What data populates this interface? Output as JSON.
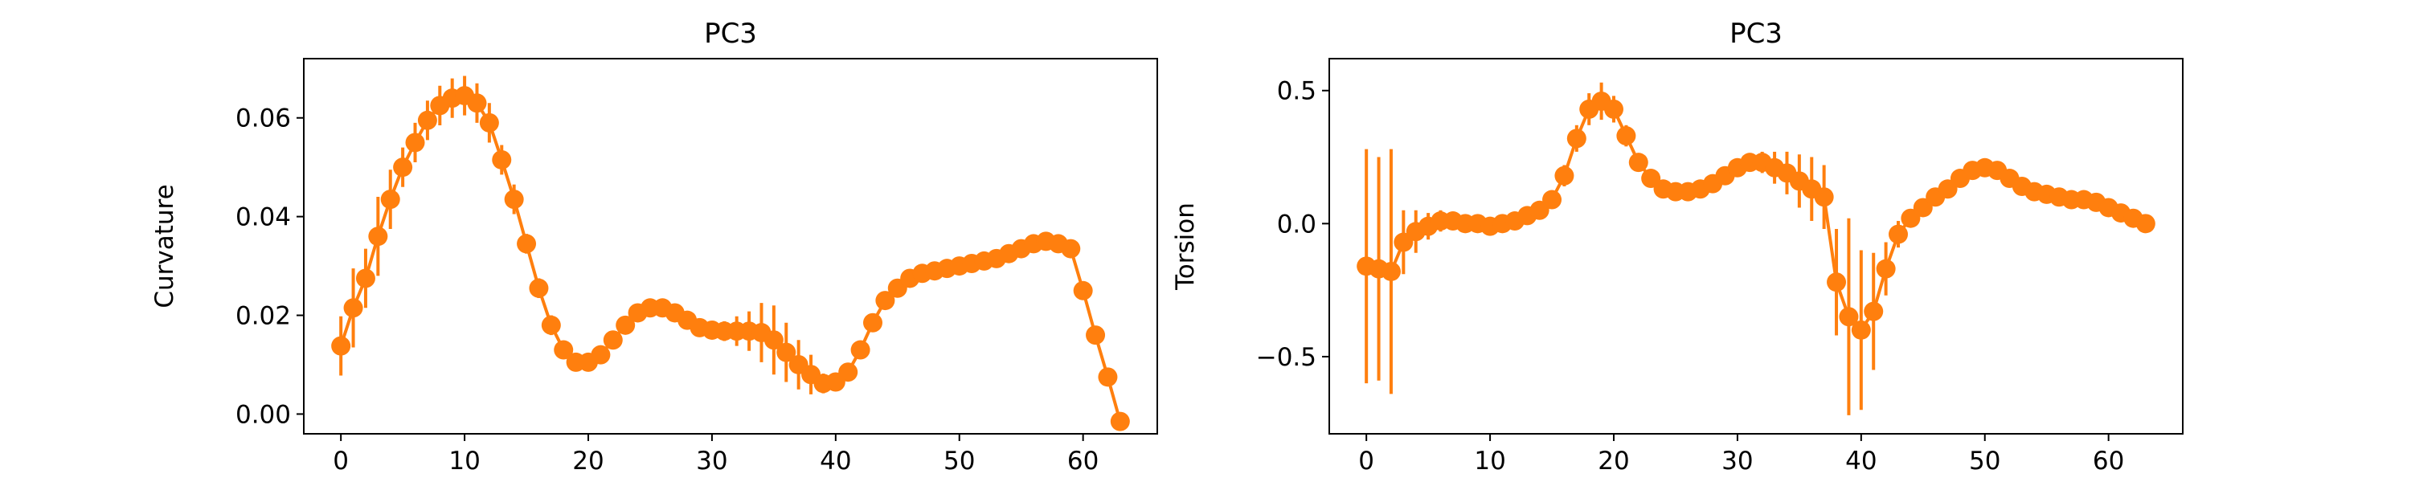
{
  "chart_data": [
    {
      "type": "line",
      "title": "PC3",
      "xlabel": "",
      "ylabel": "Curvature",
      "xlim": [
        -3,
        66
      ],
      "ylim": [
        -0.004,
        0.072
      ],
      "xticks": [
        0,
        10,
        20,
        30,
        40,
        50,
        60
      ],
      "xtick_labels": [
        "0",
        "10",
        "20",
        "30",
        "40",
        "50",
        "60"
      ],
      "yticks": [
        0.0,
        0.02,
        0.04,
        0.06
      ],
      "ytick_labels": [
        "0.00",
        "0.02",
        "0.04",
        "0.06"
      ],
      "grid": false,
      "color": "#ff7f0e",
      "series": [
        {
          "x": [
            0,
            1,
            2,
            3,
            4,
            5,
            6,
            7,
            8,
            9,
            10,
            11,
            12,
            13,
            14,
            15,
            16,
            17,
            18,
            19,
            20,
            21,
            22,
            23,
            24,
            25,
            26,
            27,
            28,
            29,
            30,
            31,
            32,
            33,
            34,
            35,
            36,
            37,
            38,
            39,
            40,
            41,
            42,
            43,
            44,
            45,
            46,
            47,
            48,
            49,
            50,
            51,
            52,
            53,
            54,
            55,
            56,
            57,
            58,
            59,
            60,
            61,
            62,
            63
          ],
          "y": [
            0.0138,
            0.0215,
            0.0275,
            0.036,
            0.0435,
            0.05,
            0.055,
            0.0595,
            0.0625,
            0.064,
            0.0645,
            0.063,
            0.059,
            0.0515,
            0.0435,
            0.0345,
            0.0255,
            0.018,
            0.013,
            0.0105,
            0.0105,
            0.012,
            0.015,
            0.018,
            0.0205,
            0.0215,
            0.0215,
            0.0205,
            0.019,
            0.0175,
            0.017,
            0.0168,
            0.0168,
            0.0168,
            0.0165,
            0.015,
            0.0125,
            0.01,
            0.008,
            0.0062,
            0.0065,
            0.0085,
            0.013,
            0.0185,
            0.023,
            0.0255,
            0.0275,
            0.0285,
            0.029,
            0.0295,
            0.03,
            0.0305,
            0.031,
            0.0315,
            0.0325,
            0.0335,
            0.0345,
            0.035,
            0.0345,
            0.0335,
            0.025,
            0.016,
            0.0075,
            -0.0015
          ],
          "err": [
            0.006,
            0.008,
            0.006,
            0.008,
            0.006,
            0.004,
            0.004,
            0.004,
            0.004,
            0.004,
            0.004,
            0.004,
            0.004,
            0.003,
            0.003,
            0.002,
            0.002,
            0.002,
            0.001,
            0.001,
            0.001,
            0.001,
            0.001,
            0.001,
            0.001,
            0.001,
            0.001,
            0.001,
            0.001,
            0.001,
            0.001,
            0.002,
            0.003,
            0.004,
            0.006,
            0.007,
            0.006,
            0.005,
            0.004,
            0.002,
            0.001,
            0.001,
            0.001,
            0.001,
            0.001,
            0.001,
            0.001,
            0.001,
            0.001,
            0.001,
            0.001,
            0.001,
            0.001,
            0.001,
            0.001,
            0.001,
            0.001,
            0.001,
            0.001,
            0.001,
            0.001,
            0.001,
            0.001,
            0.001
          ]
        }
      ]
    },
    {
      "type": "line",
      "title": "PC3",
      "xlabel": "",
      "ylabel": "Torsion",
      "xlim": [
        -3,
        66
      ],
      "ylim": [
        -0.79,
        0.62
      ],
      "xticks": [
        0,
        10,
        20,
        30,
        40,
        50,
        60
      ],
      "xtick_labels": [
        "0",
        "10",
        "20",
        "30",
        "40",
        "50",
        "60"
      ],
      "yticks": [
        -0.5,
        0.0,
        0.5
      ],
      "ytick_labels": [
        "−0.5",
        "0.0",
        "0.5"
      ],
      "grid": false,
      "color": "#ff7f0e",
      "series": [
        {
          "x": [
            0,
            1,
            2,
            3,
            4,
            5,
            6,
            7,
            8,
            9,
            10,
            11,
            12,
            13,
            14,
            15,
            16,
            17,
            18,
            19,
            20,
            21,
            22,
            23,
            24,
            25,
            26,
            27,
            28,
            29,
            30,
            31,
            32,
            33,
            34,
            35,
            36,
            37,
            38,
            39,
            40,
            41,
            42,
            43,
            44,
            45,
            46,
            47,
            48,
            49,
            50,
            51,
            52,
            53,
            54,
            55,
            56,
            57,
            58,
            59,
            60,
            61,
            62,
            63
          ],
          "y": [
            -0.16,
            -0.17,
            -0.18,
            -0.07,
            -0.03,
            -0.01,
            0.01,
            0.01,
            0.0,
            0.0,
            -0.01,
            0.0,
            0.01,
            0.03,
            0.05,
            0.09,
            0.18,
            0.32,
            0.43,
            0.46,
            0.43,
            0.33,
            0.23,
            0.17,
            0.13,
            0.12,
            0.12,
            0.13,
            0.15,
            0.18,
            0.21,
            0.23,
            0.23,
            0.21,
            0.19,
            0.16,
            0.13,
            0.1,
            -0.22,
            -0.35,
            -0.4,
            -0.33,
            -0.17,
            -0.04,
            0.02,
            0.06,
            0.1,
            0.13,
            0.17,
            0.2,
            0.21,
            0.2,
            0.17,
            0.14,
            0.12,
            0.11,
            0.1,
            0.09,
            0.09,
            0.08,
            0.06,
            0.04,
            0.02,
            0.0
          ],
          "err": [
            0.44,
            0.42,
            0.46,
            0.12,
            0.08,
            0.05,
            0.04,
            0.03,
            0.03,
            0.02,
            0.02,
            0.02,
            0.02,
            0.02,
            0.03,
            0.03,
            0.04,
            0.05,
            0.06,
            0.07,
            0.05,
            0.04,
            0.03,
            0.02,
            0.02,
            0.02,
            0.02,
            0.02,
            0.02,
            0.02,
            0.02,
            0.03,
            0.04,
            0.06,
            0.08,
            0.1,
            0.12,
            0.12,
            0.2,
            0.37,
            0.3,
            0.22,
            0.1,
            0.05,
            0.03,
            0.02,
            0.02,
            0.02,
            0.02,
            0.02,
            0.02,
            0.02,
            0.02,
            0.02,
            0.02,
            0.02,
            0.02,
            0.02,
            0.02,
            0.02,
            0.02,
            0.02,
            0.02,
            0.02
          ]
        }
      ]
    }
  ]
}
